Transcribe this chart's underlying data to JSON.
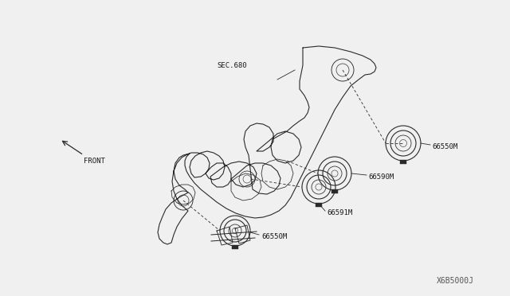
{
  "bg_color": "#f0f0f0",
  "diagram_id": "X6B5000J",
  "labels": {
    "sec680": "SEC.680",
    "front": "FRONT",
    "part1": "66550M",
    "part2": "66590M",
    "part3": "66591M",
    "part4": "66550M"
  },
  "line_color": "#2a2a2a",
  "text_color": "#1a1a1a",
  "font_size": 6.5
}
